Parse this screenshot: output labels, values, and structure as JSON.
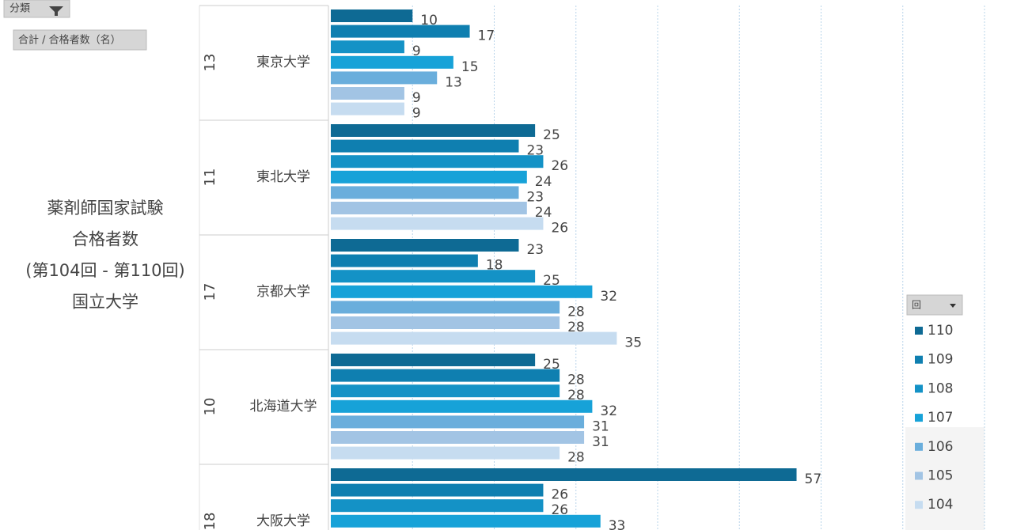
{
  "filter_buttons": {
    "category": "分類",
    "value": "合計 / 合格者数（名）"
  },
  "chart_data": {
    "type": "bar",
    "orientation": "horizontal",
    "title_lines": [
      "薬剤師国家試験",
      "合格者数",
      "(第104回 - 第110回)",
      "国立大学"
    ],
    "categories": [
      "東京大学",
      "東北大学",
      "京都大学",
      "北海道大学",
      "大阪大学"
    ],
    "category_groups": [
      "13",
      "11",
      "17",
      "10",
      "18"
    ],
    "series": [
      {
        "name": "110",
        "color": "#0e6a94",
        "values": [
          10,
          25,
          23,
          25,
          57
        ]
      },
      {
        "name": "109",
        "color": "#0f7fb0",
        "values": [
          17,
          23,
          18,
          28,
          26
        ]
      },
      {
        "name": "108",
        "color": "#1492c6",
        "values": [
          9,
          26,
          25,
          28,
          26
        ]
      },
      {
        "name": "107",
        "color": "#17a2d8",
        "values": [
          15,
          24,
          32,
          32,
          33
        ]
      },
      {
        "name": "106",
        "color": "#6aaedc",
        "values": [
          13,
          23,
          28,
          31,
          null
        ]
      },
      {
        "name": "105",
        "color": "#a2c4e4",
        "values": [
          9,
          24,
          28,
          31,
          null
        ]
      },
      {
        "name": "104",
        "color": "#c6dcf0",
        "values": [
          9,
          26,
          35,
          28,
          null
        ]
      }
    ],
    "xlim": [
      0,
      80
    ],
    "xticks": [
      0,
      10,
      20,
      30,
      40,
      50,
      60,
      70,
      80
    ],
    "grid": true,
    "legend_title": "回",
    "legend_position": "right"
  }
}
